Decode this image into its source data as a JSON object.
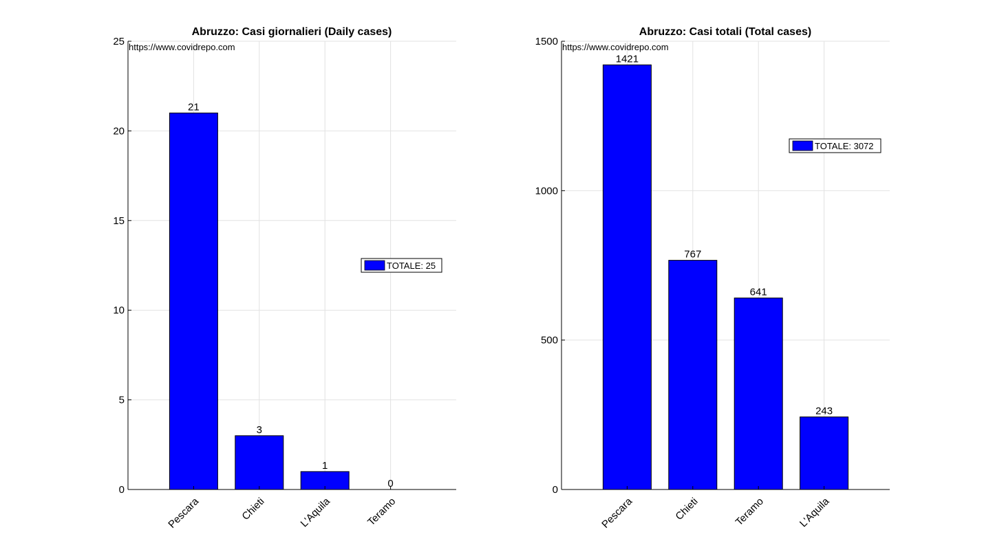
{
  "chart_data": [
    {
      "type": "bar",
      "title": "Abruzzo: Casi giornalieri (Daily cases)",
      "source_text": "https://www.covidrepo.com",
      "categories": [
        "Pescara",
        "Chieti",
        "L'Aquila",
        "Teramo"
      ],
      "values": [
        21,
        3,
        1,
        0
      ],
      "ylim": [
        0,
        25
      ],
      "yticks": [
        0,
        5,
        10,
        15,
        20,
        25
      ],
      "legend": "TOTALE: 25",
      "legend_placement": "right-middle",
      "grid": true,
      "bar_color": "#0000ff"
    },
    {
      "type": "bar",
      "title": "Abruzzo: Casi totali (Total cases)",
      "source_text": "https://www.covidrepo.com",
      "categories": [
        "Pescara",
        "Chieti",
        "Teramo",
        "L'Aquila"
      ],
      "values": [
        1421,
        767,
        641,
        243
      ],
      "ylim": [
        0,
        1500
      ],
      "yticks": [
        0,
        500,
        1000,
        1500
      ],
      "legend": "TOTALE: 3072",
      "legend_placement": "top-right",
      "grid": true,
      "bar_color": "#0000ff"
    }
  ]
}
